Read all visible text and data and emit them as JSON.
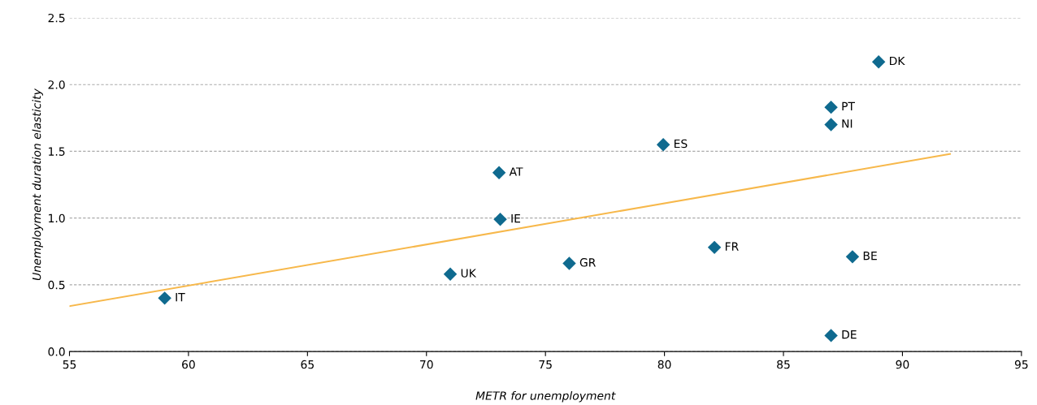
{
  "chart_data": {
    "type": "scatter",
    "xlabel": "METR for unemployment",
    "ylabel": "Unemployment duration elasticity",
    "xlim": [
      55,
      95
    ],
    "xticks": [
      55,
      60,
      65,
      70,
      75,
      80,
      85,
      90,
      95
    ],
    "ylim": [
      0,
      2.5
    ],
    "yticks": [
      {
        "value": 0,
        "label": "0.0"
      },
      {
        "value": 0.5,
        "label": "0.5"
      },
      {
        "value": 1,
        "label": "1.0"
      },
      {
        "value": 1.5,
        "label": "1.5"
      },
      {
        "value": 2,
        "label": "2.0"
      },
      {
        "value": 2.5,
        "label": "2.5"
      }
    ],
    "grid": "y",
    "series": [
      {
        "marker": "diamond",
        "color": "#0f6a8f",
        "x": [
          59.0,
          71.0,
          73.05,
          73.1,
          76.0,
          79.95,
          82.1,
          87.9,
          87.0,
          87.0,
          87.0,
          89.0
        ],
        "values": [
          0.4,
          0.58,
          1.34,
          0.99,
          0.66,
          1.55,
          0.78,
          0.71,
          0.12,
          1.7,
          1.83,
          2.17
        ]
      },
      {
        "type": "line",
        "color": "#f7b84b",
        "marker": "none",
        "x": [
          55,
          92.0
        ],
        "values": [
          0.34,
          1.48
        ]
      }
    ],
    "annotations": [
      {
        "text": "IT",
        "x": 59.0,
        "y": 0.4
      },
      {
        "text": "UK",
        "x": 71.0,
        "y": 0.58
      },
      {
        "text": "AT",
        "x": 73.05,
        "y": 1.34
      },
      {
        "text": "IE",
        "x": 73.1,
        "y": 0.99
      },
      {
        "text": "GR",
        "x": 76.0,
        "y": 0.66
      },
      {
        "text": "ES",
        "x": 79.95,
        "y": 1.55
      },
      {
        "text": "FR",
        "x": 82.1,
        "y": 0.78
      },
      {
        "text": "BE",
        "x": 87.9,
        "y": 0.71
      },
      {
        "text": "DE",
        "x": 87.0,
        "y": 0.12
      },
      {
        "text": "NI",
        "x": 87.0,
        "y": 1.7
      },
      {
        "text": "PT",
        "x": 87.0,
        "y": 1.83
      },
      {
        "text": "DK",
        "x": 89.0,
        "y": 2.17
      }
    ]
  }
}
